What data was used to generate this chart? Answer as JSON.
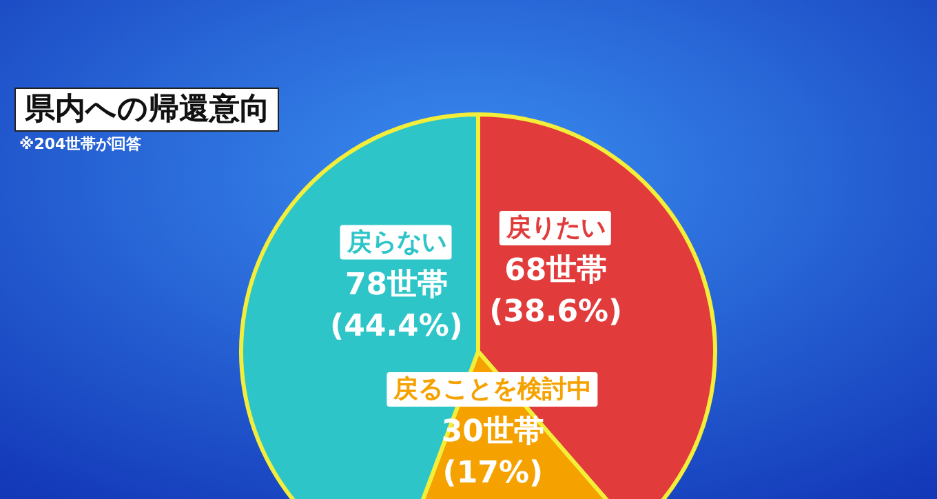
{
  "chart_data": {
    "type": "pie",
    "title": "県内への帰還意向",
    "annotations": [
      "※204世帯が回答"
    ],
    "categories": [
      "戻りたい",
      "戻ることを検討中",
      "戻らない"
    ],
    "values": [
      68,
      30,
      78
    ],
    "colors": [
      "#e23b3b",
      "#f5a200",
      "#2ec5c9"
    ],
    "value_labels": [
      "68世帯\n(38.6%)",
      "30世帯\n(17%)",
      "78世帯\n(44.4%)"
    ]
  }
}
